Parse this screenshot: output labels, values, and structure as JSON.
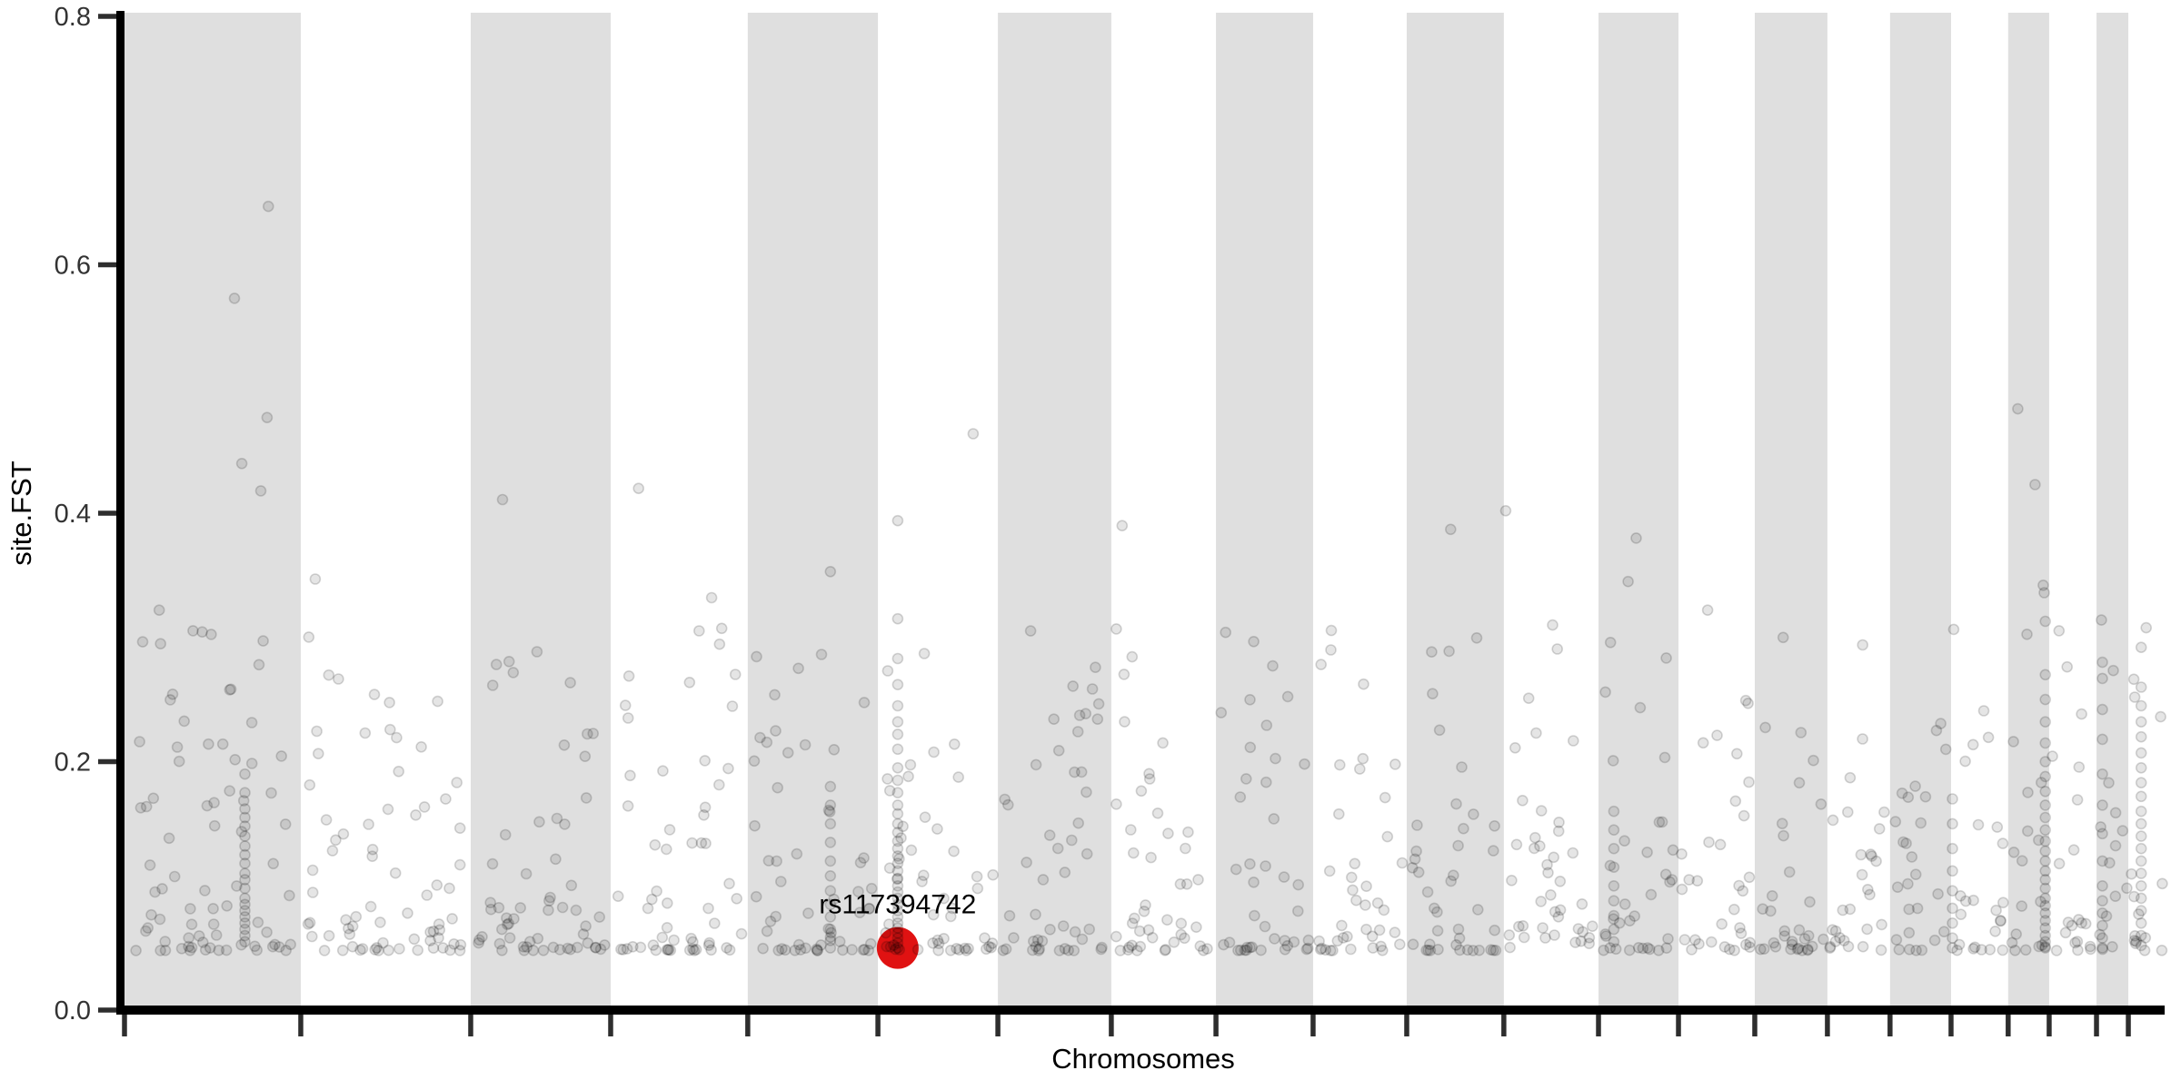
{
  "figure": {
    "xlabel": "Chromosomes",
    "ylabel": "site.FST",
    "annotation_label": "rs117394742"
  },
  "chart_data": {
    "type": "scatter",
    "subtype": "manhattan-plot",
    "title": "",
    "xlabel": "Chromosomes",
    "ylabel": "site.FST",
    "ylim": [
      0,
      0.8
    ],
    "yticks": [
      0.0,
      0.2,
      0.4,
      0.6,
      0.8
    ],
    "ytick_labels": [
      "0.0",
      "0.2",
      "0.4",
      "0.6",
      "0.8"
    ],
    "xtick_labels": [],
    "grid": false,
    "legend": "none",
    "n_chromosomes": 22,
    "chromosome_boundaries_frac": [
      0,
      0.0864,
      0.1697,
      0.2383,
      0.3055,
      0.3693,
      0.4281,
      0.4837,
      0.535,
      0.5826,
      0.6285,
      0.6761,
      0.7225,
      0.7617,
      0.7991,
      0.8347,
      0.8654,
      0.8953,
      0.9233,
      0.9434,
      0.9666,
      0.9822,
      1.0
    ],
    "shaded_bands": "alternating, odd chromosomes shaded starting with chromosome 1",
    "point_floor_y": 0.048,
    "highlight": {
      "label": "rs117394742",
      "x_frac": 0.379,
      "y": 0.05,
      "color": "#e01212",
      "radius_px": 23
    },
    "outliers": [
      [
        0.0705,
        0.647
      ],
      [
        0.0539,
        0.573
      ],
      [
        0.0699,
        0.477
      ],
      [
        0.0575,
        0.44
      ],
      [
        0.0668,
        0.418
      ],
      [
        0.017,
        0.322
      ],
      [
        0.0935,
        0.347
      ],
      [
        0.1853,
        0.411
      ],
      [
        0.252,
        0.42
      ],
      [
        0.2878,
        0.332
      ],
      [
        0.346,
        0.353
      ],
      [
        0.379,
        0.394
      ],
      [
        0.416,
        0.464
      ],
      [
        0.489,
        0.39
      ],
      [
        0.65,
        0.387
      ],
      [
        0.677,
        0.402
      ],
      [
        0.7,
        0.31
      ],
      [
        0.741,
        0.38
      ],
      [
        0.737,
        0.345
      ],
      [
        0.776,
        0.322
      ],
      [
        0.813,
        0.3
      ],
      [
        0.852,
        0.294
      ],
      [
        0.928,
        0.484
      ],
      [
        0.9365,
        0.423
      ],
      [
        0.9405,
        0.342
      ],
      [
        0.941,
        0.336
      ],
      [
        0.9415,
        0.313
      ],
      [
        0.969,
        0.314
      ],
      [
        0.9885,
        0.292
      ]
    ],
    "column_clusters": [
      {
        "x_frac": 0.059,
        "ys": [
          0.19,
          0.175,
          0.162,
          0.155,
          0.148,
          0.14,
          0.132,
          0.125,
          0.118,
          0.11,
          0.105,
          0.098,
          0.09,
          0.085,
          0.08,
          0.075,
          0.07,
          0.065,
          0.06,
          0.055
        ]
      },
      {
        "x_frac": 0.346,
        "ys": [
          0.18,
          0.165,
          0.15,
          0.135,
          0.12,
          0.108,
          0.096,
          0.085,
          0.075,
          0.065,
          0.056,
          0.05
        ]
      },
      {
        "x_frac": 0.379,
        "ys": [
          0.315,
          0.283,
          0.262,
          0.245,
          0.232,
          0.222,
          0.21,
          0.195,
          0.185,
          0.175,
          0.165,
          0.158,
          0.15,
          0.143,
          0.136,
          0.13,
          0.124,
          0.118,
          0.112,
          0.106,
          0.1,
          0.095,
          0.09,
          0.085,
          0.08,
          0.075,
          0.07,
          0.066,
          0.062,
          0.058,
          0.054,
          0.05
        ]
      },
      {
        "x_frac": 0.73,
        "ys": [
          0.16,
          0.145,
          0.13,
          0.115,
          0.1,
          0.088,
          0.076,
          0.065,
          0.055
        ]
      },
      {
        "x_frac": 0.896,
        "ys": [
          0.17,
          0.15,
          0.13,
          0.112,
          0.096,
          0.082,
          0.07,
          0.058,
          0.05
        ]
      },
      {
        "x_frac": 0.9415,
        "ys": [
          0.27,
          0.25,
          0.232,
          0.215,
          0.2,
          0.188,
          0.176,
          0.165,
          0.155,
          0.145,
          0.136,
          0.128,
          0.12,
          0.112,
          0.105,
          0.098,
          0.09,
          0.084,
          0.078,
          0.072,
          0.066,
          0.06,
          0.055,
          0.05
        ]
      },
      {
        "x_frac": 0.9695,
        "ys": [
          0.28,
          0.267,
          0.242,
          0.218,
          0.19,
          0.165,
          0.142,
          0.12,
          0.1,
          0.088,
          0.078,
          0.068,
          0.058,
          0.05
        ]
      },
      {
        "x_frac": 0.9885,
        "ys": [
          0.26,
          0.245,
          0.232,
          0.22,
          0.207,
          0.195,
          0.183,
          0.172,
          0.16,
          0.15,
          0.14,
          0.13,
          0.12,
          0.11,
          0.1,
          0.09,
          0.08,
          0.07,
          0.06,
          0.052
        ]
      }
    ],
    "background_points_spec": {
      "seed": 7,
      "per_chromosome_counts": [
        76,
        72,
        59,
        58,
        55,
        51,
        48,
        44,
        41,
        40,
        41,
        40,
        34,
        32,
        31,
        27,
        26,
        24,
        17,
        20,
        13,
        15
      ],
      "y_floor": 0.048,
      "y_span": 0.26,
      "y_power": 2.8,
      "x_margin_frac": 0.04
    },
    "colors": {
      "band": "#dfdfdf",
      "panel_bg": "#ffffff",
      "point_fill": "rgba(0,0,0,0.10)",
      "point_stroke": "rgba(0,0,0,0.16)",
      "axis": "#000000",
      "tick": "#2e2e2e",
      "tick_label": "#333333",
      "text": "#000000"
    }
  }
}
